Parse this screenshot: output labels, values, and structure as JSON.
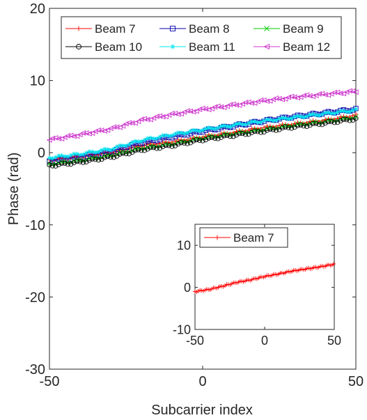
{
  "chart_data": [
    {
      "type": "line",
      "xlabel": "Subcarrier index",
      "ylabel": "Phase (rad)",
      "xlim": [
        -50,
        50
      ],
      "ylim": [
        -30,
        20
      ],
      "xticks": [
        "-50",
        "0",
        "50"
      ],
      "yticks": [
        "-30",
        "-20",
        "-10",
        "0",
        "10",
        "20"
      ],
      "grid": false,
      "legend_position": "top",
      "series": [
        {
          "name": "Beam 7",
          "color": "#ff0000",
          "marker": "plus",
          "x": [
            -50,
            -40,
            -30,
            -20,
            -10,
            0,
            10,
            20,
            30,
            40,
            50
          ],
          "y": [
            -1.0,
            -0.5,
            0.0,
            1.0,
            1.5,
            2.2,
            2.8,
            3.5,
            4.0,
            4.5,
            5.2
          ]
        },
        {
          "name": "Beam 8",
          "color": "#0000aa",
          "marker": "square",
          "x": [
            -50,
            -40,
            -30,
            -20,
            -10,
            0,
            10,
            20,
            30,
            40,
            50
          ],
          "y": [
            -1.2,
            -0.6,
            0.2,
            1.4,
            2.2,
            3.0,
            3.7,
            4.4,
            5.0,
            5.5,
            6.0
          ]
        },
        {
          "name": "Beam 9",
          "color": "#00cc00",
          "marker": "x",
          "x": [
            -50,
            -40,
            -30,
            -20,
            -10,
            0,
            10,
            20,
            30,
            40,
            50
          ],
          "y": [
            -1.6,
            -1.1,
            -0.4,
            0.6,
            1.2,
            2.0,
            2.6,
            3.2,
            3.8,
            4.3,
            4.9
          ]
        },
        {
          "name": "Beam 10",
          "color": "#000000",
          "marker": "circle",
          "x": [
            -50,
            -40,
            -30,
            -20,
            -10,
            0,
            10,
            20,
            30,
            40,
            50
          ],
          "y": [
            -1.8,
            -1.3,
            -0.6,
            0.4,
            1.0,
            1.8,
            2.4,
            3.0,
            3.6,
            4.1,
            4.7
          ]
        },
        {
          "name": "Beam 11",
          "color": "#00e5ee",
          "marker": "star",
          "x": [
            -50,
            -40,
            -30,
            -20,
            -10,
            0,
            10,
            20,
            30,
            40,
            50
          ],
          "y": [
            -0.7,
            -0.2,
            0.5,
            1.7,
            2.5,
            3.2,
            3.8,
            4.4,
            4.9,
            5.4,
            5.9
          ]
        },
        {
          "name": "Beam 12",
          "color": "#cc33cc",
          "marker": "triangle-left",
          "x": [
            -50,
            -40,
            -30,
            -20,
            -10,
            0,
            10,
            20,
            30,
            40,
            50
          ],
          "y": [
            1.8,
            2.5,
            3.3,
            4.5,
            5.3,
            6.0,
            6.6,
            7.2,
            7.7,
            8.1,
            8.5
          ]
        }
      ]
    },
    {
      "type": "line",
      "inset": true,
      "xlim": [
        -50,
        50
      ],
      "ylim": [
        -10,
        15
      ],
      "xticks": [
        "-50",
        "0",
        "50"
      ],
      "yticks": [
        "-10",
        "0",
        "10"
      ],
      "grid": false,
      "legend_position": "top-left",
      "series": [
        {
          "name": "Beam 7",
          "color": "#ff0000",
          "marker": "plus",
          "x": [
            -50,
            -40,
            -30,
            -20,
            -10,
            0,
            10,
            20,
            30,
            40,
            50
          ],
          "y": [
            -1.0,
            -0.5,
            0.3,
            1.2,
            1.8,
            2.6,
            3.2,
            3.9,
            4.4,
            4.9,
            5.5
          ]
        }
      ]
    }
  ]
}
